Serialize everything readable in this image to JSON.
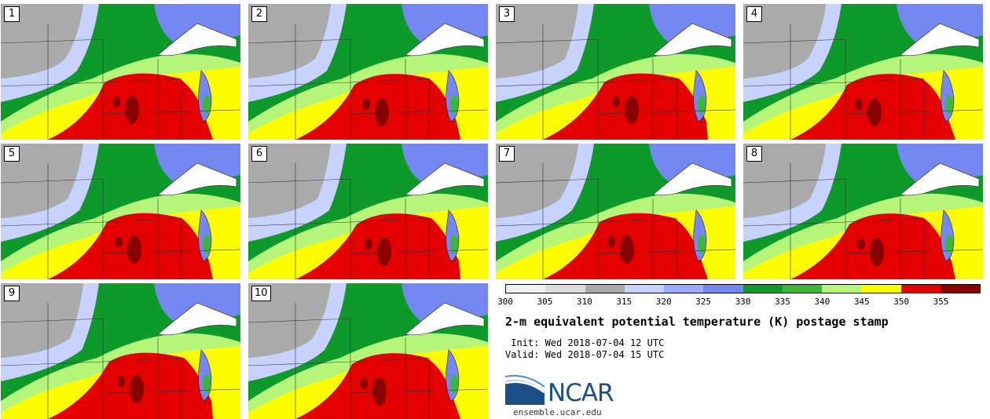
{
  "panels": [
    {
      "label": "1"
    },
    {
      "label": "2"
    },
    {
      "label": "3"
    },
    {
      "label": "4"
    },
    {
      "label": "5"
    },
    {
      "label": "6"
    },
    {
      "label": "7"
    },
    {
      "label": "8"
    },
    {
      "label": "9"
    },
    {
      "label": "10"
    }
  ],
  "colorbar": {
    "colors": [
      "#f0f0f0",
      "#dcdcdc",
      "#aaaaaa",
      "#c8d2ff",
      "#9aaaff",
      "#7587f2",
      "#0d9a2a",
      "#3eb63c",
      "#b4f57a",
      "#fdfd00",
      "#e50000",
      "#8a0000"
    ],
    "ticks": [
      "300",
      "305",
      "310",
      "315",
      "320",
      "325",
      "330",
      "335",
      "340",
      "345",
      "350",
      "355"
    ]
  },
  "title": "2-m equivalent potential temperature (K) postage stamp",
  "init": " Init: Wed 2018-07-04 12 UTC",
  "valid": "Valid: Wed 2018-07-04 15 UTC",
  "logo": {
    "text": "NCAR",
    "url": "ensemble.ucar.edu",
    "color": "#1c4f86"
  }
}
